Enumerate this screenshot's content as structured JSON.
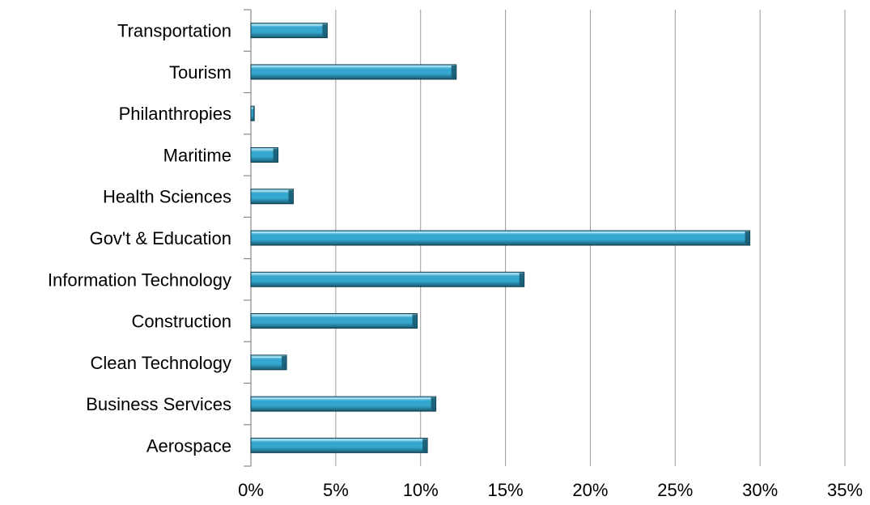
{
  "chart_data": {
    "type": "bar",
    "orientation": "horizontal",
    "title": "",
    "xlabel": "",
    "ylabel": "",
    "categories": [
      "Transportation",
      "Tourism",
      "Philanthropies",
      "Maritime",
      "Health Sciences",
      "Gov't & Education",
      "Information Technology",
      "Construction",
      "Clean Technology",
      "Business Services",
      "Aerospace"
    ],
    "values": [
      4.5,
      12.1,
      0.2,
      1.6,
      2.5,
      29.4,
      16.1,
      9.8,
      2.1,
      10.9,
      10.4
    ],
    "xlim": [
      0,
      35
    ],
    "x_ticks": [
      0,
      5,
      10,
      15,
      20,
      25,
      30,
      35
    ],
    "x_tick_labels": [
      "0%",
      "5%",
      "10%",
      "15%",
      "20%",
      "25%",
      "30%",
      "35%"
    ],
    "grid": "vertical gridlines",
    "legend": "none",
    "colors": {
      "bar_fill": "#35a7cf",
      "bar_highlight": "#a6e0f4",
      "bar_shadow": "#17586f",
      "bar_edge": "#0f3b4b",
      "gridline": "#9a9a9a",
      "axis": "#888888"
    }
  }
}
